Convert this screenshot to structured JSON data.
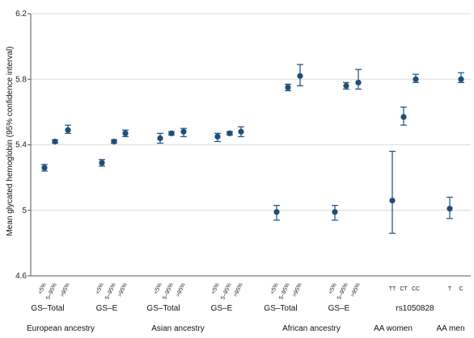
{
  "chart_data": {
    "type": "scatter",
    "ylabel": "Mean glycated hemoglobin (95% confidence interval)",
    "ylim": [
      4.6,
      6.2
    ],
    "yticks": [
      4.6,
      5,
      5.4,
      5.8,
      6.2
    ],
    "grid": true,
    "colors": {
      "point": "#1f4e79",
      "grid": "#dcdcdc",
      "axis": "#555555"
    },
    "groups": [
      {
        "label": "GS–Total",
        "ancestry": "European ancestry",
        "points": [
          {
            "category": "<5%",
            "mean": 5.26,
            "lower": 5.24,
            "upper": 5.28
          },
          {
            "category": "5–95%",
            "mean": 5.42,
            "lower": 5.41,
            "upper": 5.43
          },
          {
            "category": ">95%",
            "mean": 5.49,
            "lower": 5.47,
            "upper": 5.52
          }
        ]
      },
      {
        "label": "GS–E",
        "ancestry": "",
        "points": [
          {
            "category": "<5%",
            "mean": 5.29,
            "lower": 5.27,
            "upper": 5.31
          },
          {
            "category": "5–95%",
            "mean": 5.42,
            "lower": 5.41,
            "upper": 5.43
          },
          {
            "category": ">95%",
            "mean": 5.47,
            "lower": 5.45,
            "upper": 5.49
          }
        ]
      },
      {
        "label": "GS–Total",
        "ancestry": "Asian ancestry",
        "points": [
          {
            "category": "<5%",
            "mean": 5.44,
            "lower": 5.41,
            "upper": 5.47
          },
          {
            "category": "5–95%",
            "mean": 5.47,
            "lower": 5.46,
            "upper": 5.48
          },
          {
            "category": ">95%",
            "mean": 5.48,
            "lower": 5.45,
            "upper": 5.5
          }
        ]
      },
      {
        "label": "GS–E",
        "ancestry": "",
        "points": [
          {
            "category": "<5%",
            "mean": 5.45,
            "lower": 5.42,
            "upper": 5.47
          },
          {
            "category": "5–95%",
            "mean": 5.47,
            "lower": 5.46,
            "upper": 5.48
          },
          {
            "category": ">95%",
            "mean": 5.48,
            "lower": 5.45,
            "upper": 5.51
          }
        ]
      },
      {
        "label": "GS–Total",
        "ancestry": "African ancestry",
        "points": [
          {
            "category": "<5%",
            "mean": 4.99,
            "lower": 4.94,
            "upper": 5.03
          },
          {
            "category": "5–95%",
            "mean": 5.75,
            "lower": 5.73,
            "upper": 5.77
          },
          {
            "category": ">95%",
            "mean": 5.82,
            "lower": 5.76,
            "upper": 5.89
          }
        ]
      },
      {
        "label": "GS–E",
        "ancestry": "",
        "points": [
          {
            "category": "<5%",
            "mean": 4.99,
            "lower": 4.94,
            "upper": 5.03
          },
          {
            "category": "5–95%",
            "mean": 5.76,
            "lower": 5.74,
            "upper": 5.78
          },
          {
            "category": ">95%",
            "mean": 5.78,
            "lower": 5.74,
            "upper": 5.86
          }
        ]
      },
      {
        "label": "",
        "ancestry": "AA women",
        "points": [
          {
            "category": "TT",
            "mean": 5.06,
            "lower": 4.86,
            "upper": 5.36
          },
          {
            "category": "CT",
            "mean": 5.57,
            "lower": 5.52,
            "upper": 5.63
          },
          {
            "category": "CC",
            "mean": 5.8,
            "lower": 5.78,
            "upper": 5.83
          }
        ]
      },
      {
        "label": "",
        "ancestry": "AA men",
        "points": [
          {
            "category": "T",
            "mean": 5.01,
            "lower": 4.95,
            "upper": 5.08
          },
          {
            "category": "C",
            "mean": 5.8,
            "lower": 5.78,
            "upper": 5.84
          }
        ]
      }
    ],
    "shared_label": "rs1050828"
  }
}
